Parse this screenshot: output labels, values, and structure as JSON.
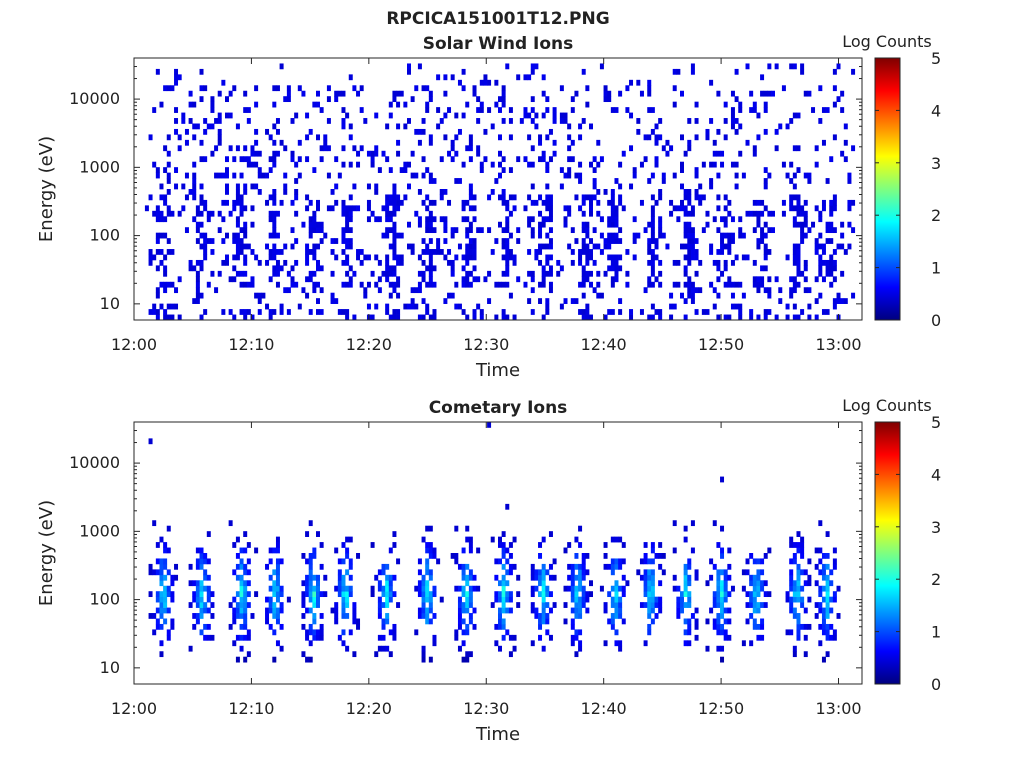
{
  "figure_title": "RPCICA151001T12.PNG",
  "colormap": [
    "#00007f",
    "#0000ff",
    "#007fff",
    "#00ffff",
    "#7fff7f",
    "#ffff00",
    "#ff7f00",
    "#ff0000",
    "#7f0000"
  ],
  "chart_data": [
    {
      "type": "heatmap",
      "title": "Solar Wind Ions",
      "xlabel": "Time",
      "ylabel": "Energy (eV)",
      "y_scale": "log",
      "xlim": [
        "12:00",
        "13:02"
      ],
      "ylim": [
        5.8,
        40000
      ],
      "x_ticks": [
        "12:00",
        "12:10",
        "12:20",
        "12:30",
        "12:40",
        "12:50",
        "13:00"
      ],
      "y_ticks": [
        "10",
        "100",
        "1000",
        "10000"
      ],
      "colorbar": {
        "label": "Log Counts",
        "range": [
          0,
          5
        ],
        "ticks": [
          "0",
          "1",
          "2",
          "3",
          "4",
          "5"
        ]
      },
      "start_minute": 1,
      "end_minute": 61.2,
      "log_counts_typical": 0.4,
      "scattered_max_energy_ev": 30000,
      "bursts_minutes": [
        2.5,
        5.8,
        9.0,
        12.0,
        15.3,
        18.2,
        22.0,
        25.2,
        28.5,
        31.8,
        35.0,
        38.5,
        41.0,
        44.3,
        47.3,
        50.3,
        53.5,
        56.5,
        59.2
      ],
      "burst_energy_range_ev": [
        20,
        400
      ]
    },
    {
      "type": "heatmap",
      "title": "Cometary Ions",
      "xlabel": "Time",
      "ylabel": "Energy (eV)",
      "y_scale": "log",
      "xlim": [
        "12:00",
        "13:02"
      ],
      "ylim": [
        5.8,
        40000
      ],
      "x_ticks": [
        "12:00",
        "12:10",
        "12:20",
        "12:30",
        "12:40",
        "12:50",
        "13:00"
      ],
      "y_ticks": [
        "10",
        "100",
        "1000",
        "10000"
      ],
      "colorbar": {
        "label": "Log Counts",
        "range": [
          0,
          5
        ],
        "ticks": [
          "0",
          "1",
          "2",
          "3",
          "4",
          "5"
        ]
      },
      "start_minute": 1,
      "end_minute": 61.2,
      "energy_range_ev": [
        10,
        700
      ],
      "peak_log_counts": 1.8,
      "bursts_minutes": [
        2.5,
        5.8,
        9.2,
        12.0,
        15.3,
        18.0,
        21.5,
        25.0,
        28.3,
        31.5,
        34.8,
        37.8,
        41.0,
        44.0,
        47.0,
        50.0,
        53.0,
        56.5,
        59.0
      ],
      "isolated_points": [
        {
          "minute": 1.5,
          "energy_ev": 22000
        },
        {
          "minute": 30.2,
          "energy_ev": 38000
        },
        {
          "minute": 50.2,
          "energy_ev": 6000
        },
        {
          "minute": 31.8,
          "energy_ev": 2300
        }
      ]
    }
  ]
}
